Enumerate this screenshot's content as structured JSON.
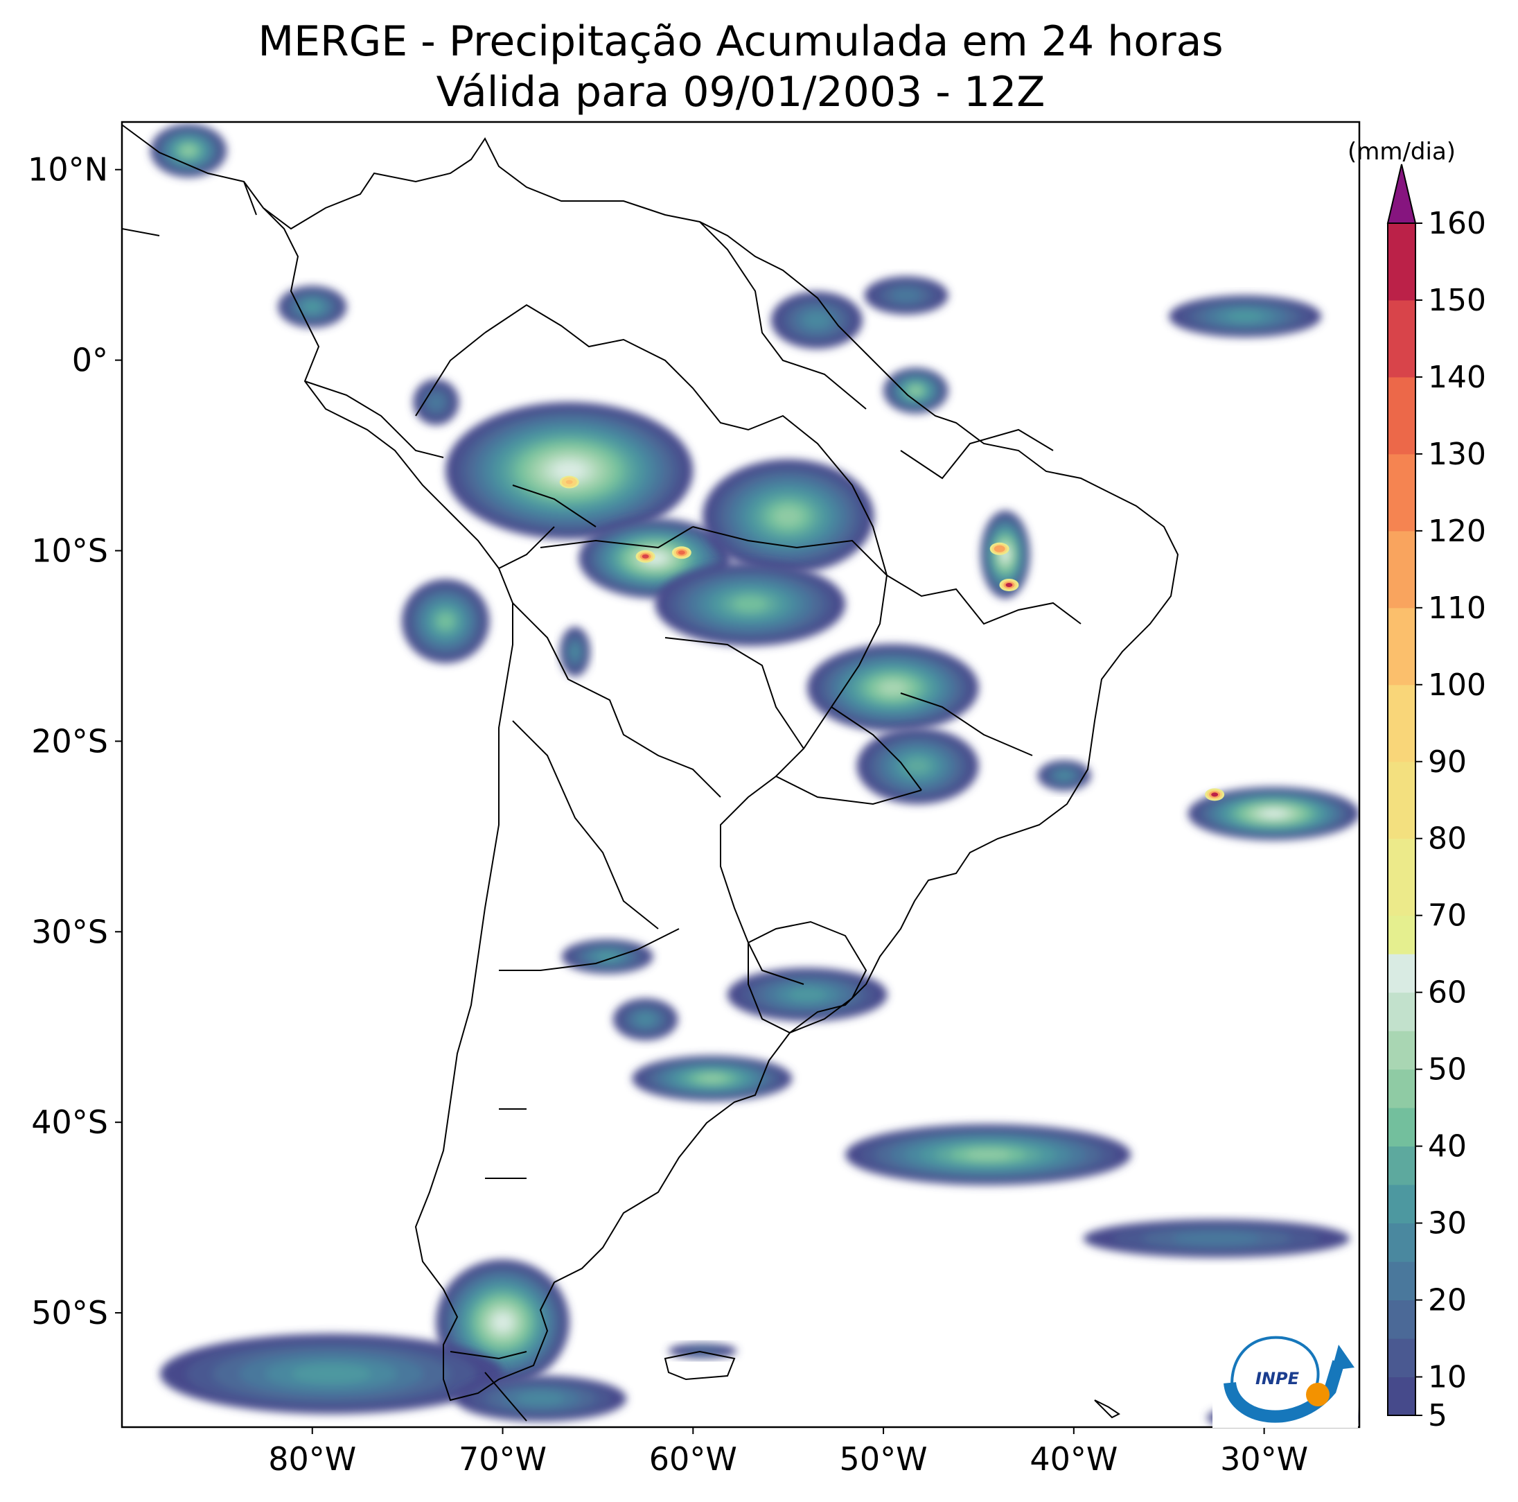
{
  "title": {
    "line1": "MERGE - Precipitação Acumulada em 24 horas",
    "line2": "Válida para 09/01/2003 - 12Z"
  },
  "map": {
    "lat_range": [
      -56,
      12.5
    ],
    "lon_range": [
      -90,
      -25
    ],
    "lat_ticks": [
      {
        "value": 10,
        "label": "10°N"
      },
      {
        "value": 0,
        "label": "0°"
      },
      {
        "value": -10,
        "label": "10°S"
      },
      {
        "value": -20,
        "label": "20°S"
      },
      {
        "value": -30,
        "label": "30°S"
      },
      {
        "value": -40,
        "label": "40°S"
      },
      {
        "value": -50,
        "label": "50°S"
      }
    ],
    "lon_ticks": [
      {
        "value": -80,
        "label": "80°W"
      },
      {
        "value": -70,
        "label": "70°W"
      },
      {
        "value": -60,
        "label": "60°W"
      },
      {
        "value": -50,
        "label": "50°W"
      },
      {
        "value": -40,
        "label": "40°W"
      },
      {
        "value": -30,
        "label": "30°W"
      }
    ],
    "rain_areas": [
      {
        "name": "western-amazon",
        "lon": -66.5,
        "lat": -5.8,
        "rx": 6.5,
        "ry": 3.6,
        "peak": 95
      },
      {
        "name": "rondonia",
        "lon": -62.0,
        "lat": -10.4,
        "rx": 4.0,
        "ry": 2.1,
        "peak": 140
      },
      {
        "name": "mato-grosso",
        "lon": -55.0,
        "lat": -8.2,
        "rx": 4.5,
        "ry": 3.0,
        "peak": 45
      },
      {
        "name": "central-brazil",
        "lon": -57.0,
        "lat": -12.8,
        "rx": 5.0,
        "ry": 2.2,
        "peak": 40
      },
      {
        "name": "goias",
        "lon": -49.5,
        "lat": -17.2,
        "rx": 4.5,
        "ry": 2.3,
        "peak": 50
      },
      {
        "name": "sao-paulo",
        "lon": -48.2,
        "lat": -21.3,
        "rx": 3.2,
        "ry": 2.0,
        "peak": 35
      },
      {
        "name": "bahia",
        "lon": -43.6,
        "lat": -10.2,
        "rx": 1.3,
        "ry": 2.3,
        "peak": 150
      },
      {
        "name": "peru",
        "lon": -73.0,
        "lat": -13.7,
        "rx": 2.3,
        "ry": 2.2,
        "peak": 40
      },
      {
        "name": "bolivia",
        "lon": -66.2,
        "lat": -15.3,
        "rx": 0.8,
        "ry": 1.3,
        "peak": 25
      },
      {
        "name": "guianas",
        "lon": -53.5,
        "lat": 2.1,
        "rx": 2.4,
        "ry": 1.5,
        "peak": 25
      },
      {
        "name": "amapa",
        "lon": -48.3,
        "lat": -1.6,
        "rx": 1.7,
        "ry": 1.2,
        "peak": 45
      },
      {
        "name": "north-guyana",
        "lon": -48.8,
        "lat": 3.4,
        "rx": 2.2,
        "ry": 1.0,
        "peak": 20
      },
      {
        "name": "colombia",
        "lon": -73.5,
        "lat": -2.2,
        "rx": 1.2,
        "ry": 1.2,
        "peak": 20
      },
      {
        "name": "panama",
        "lon": -86.5,
        "lat": 11.0,
        "rx": 2.0,
        "ry": 1.4,
        "peak": 45
      },
      {
        "name": "colombia-pacific",
        "lon": -80.0,
        "lat": 2.8,
        "rx": 1.8,
        "ry": 1.1,
        "peak": 30
      },
      {
        "name": "atlantic-north",
        "lon": -31.0,
        "lat": 2.3,
        "rx": 4.0,
        "ry": 1.1,
        "peak": 30
      },
      {
        "name": "atlantic-south-east",
        "lon": -29.5,
        "lat": -23.8,
        "rx": 4.5,
        "ry": 1.4,
        "peak": 150
      },
      {
        "name": "rio",
        "lon": -40.5,
        "lat": -21.8,
        "rx": 1.4,
        "ry": 0.8,
        "peak": 25
      },
      {
        "name": "uruguay",
        "lon": -54.0,
        "lat": -33.3,
        "rx": 4.2,
        "ry": 1.4,
        "peak": 30
      },
      {
        "name": "argentina-center",
        "lon": -64.5,
        "lat": -31.3,
        "rx": 2.4,
        "ry": 0.9,
        "peak": 30
      },
      {
        "name": "argentina-pampas",
        "lon": -62.5,
        "lat": -34.6,
        "rx": 1.7,
        "ry": 1.1,
        "peak": 25
      },
      {
        "name": "patagonia-coast",
        "lon": -59.0,
        "lat": -37.7,
        "rx": 4.2,
        "ry": 1.2,
        "peak": 45
      },
      {
        "name": "south-atlantic",
        "lon": -44.5,
        "lat": -41.7,
        "rx": 7.5,
        "ry": 1.6,
        "peak": 45
      },
      {
        "name": "south-atlantic-east",
        "lon": -32.5,
        "lat": -46.1,
        "rx": 7.0,
        "ry": 1.0,
        "peak": 20
      },
      {
        "name": "patagonia-south",
        "lon": -70.0,
        "lat": -50.5,
        "rx": 3.5,
        "ry": 3.3,
        "peak": 60
      },
      {
        "name": "pacific-south",
        "lon": -79.0,
        "lat": -53.2,
        "rx": 9.0,
        "ry": 2.1,
        "peak": 30
      },
      {
        "name": "tierra-del-fuego",
        "lon": -68.0,
        "lat": -54.5,
        "rx": 4.5,
        "ry": 1.2,
        "peak": 25
      },
      {
        "name": "falklands",
        "lon": -59.5,
        "lat": -52.0,
        "rx": 1.8,
        "ry": 0.4,
        "peak": 15
      },
      {
        "name": "southeast-corner",
        "lon": -29.0,
        "lat": -55.5,
        "rx": 4.0,
        "ry": 0.8,
        "peak": 30
      }
    ],
    "hotspots": [
      {
        "lon": -66.5,
        "lat": -6.4,
        "value": 100
      },
      {
        "lon": -62.5,
        "lat": -10.3,
        "value": 140
      },
      {
        "lon": -60.6,
        "lat": -10.1,
        "value": 130
      },
      {
        "lon": -43.4,
        "lat": -11.8,
        "value": 150
      },
      {
        "lon": -43.9,
        "lat": -9.9,
        "value": 110
      },
      {
        "lon": -32.6,
        "lat": -22.8,
        "value": 150
      }
    ]
  },
  "colorbar": {
    "unit_label": "(mm/dia)",
    "min": 5,
    "max": 160,
    "ticks": [
      {
        "value": 5,
        "label": "5"
      },
      {
        "value": 10,
        "label": "10"
      },
      {
        "value": 20,
        "label": "20"
      },
      {
        "value": 30,
        "label": "30"
      },
      {
        "value": 40,
        "label": "40"
      },
      {
        "value": 50,
        "label": "50"
      },
      {
        "value": 60,
        "label": "60"
      },
      {
        "value": 70,
        "label": "70"
      },
      {
        "value": 80,
        "label": "80"
      },
      {
        "value": 90,
        "label": "90"
      },
      {
        "value": 100,
        "label": "100"
      },
      {
        "value": 110,
        "label": "110"
      },
      {
        "value": 120,
        "label": "120"
      },
      {
        "value": 130,
        "label": "130"
      },
      {
        "value": 140,
        "label": "140"
      },
      {
        "value": 150,
        "label": "150"
      },
      {
        "value": 160,
        "label": "160"
      }
    ],
    "bands": [
      {
        "from": 5,
        "to": 10,
        "color": "#464a8b"
      },
      {
        "from": 10,
        "to": 15,
        "color": "#4a5991"
      },
      {
        "from": 15,
        "to": 20,
        "color": "#4b6997"
      },
      {
        "from": 20,
        "to": 25,
        "color": "#4a789c"
      },
      {
        "from": 25,
        "to": 30,
        "color": "#4a889f"
      },
      {
        "from": 30,
        "to": 35,
        "color": "#4d98a0"
      },
      {
        "from": 35,
        "to": 40,
        "color": "#5da99e"
      },
      {
        "from": 40,
        "to": 45,
        "color": "#73bf9d"
      },
      {
        "from": 45,
        "to": 50,
        "color": "#8fcba4"
      },
      {
        "from": 50,
        "to": 55,
        "color": "#a9d6b3"
      },
      {
        "from": 55,
        "to": 60,
        "color": "#c2e1cc"
      },
      {
        "from": 60,
        "to": 65,
        "color": "#d9ebe3"
      },
      {
        "from": 65,
        "to": 70,
        "color": "#e5ef8f"
      },
      {
        "from": 70,
        "to": 80,
        "color": "#ecea8a"
      },
      {
        "from": 80,
        "to": 90,
        "color": "#f3e07f"
      },
      {
        "from": 90,
        "to": 100,
        "color": "#f9d679"
      },
      {
        "from": 100,
        "to": 110,
        "color": "#fbbf6c"
      },
      {
        "from": 110,
        "to": 120,
        "color": "#f9a45e"
      },
      {
        "from": 120,
        "to": 130,
        "color": "#f58451"
      },
      {
        "from": 130,
        "to": 140,
        "color": "#ec6849"
      },
      {
        "from": 140,
        "to": 150,
        "color": "#d8444a"
      },
      {
        "from": 150,
        "to": 160,
        "color": "#bb2148"
      }
    ],
    "extend_color": "#86157f"
  },
  "logo": {
    "text": "INPE",
    "colors": {
      "blue": "#1677bb",
      "orange": "#f39200"
    }
  }
}
